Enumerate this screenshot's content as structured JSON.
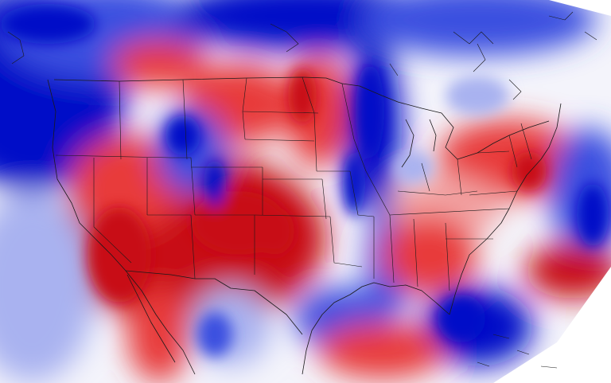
{
  "map": {
    "kind": "weather-anomaly-field",
    "region": "contiguous-united-states",
    "projection": "conic",
    "colors": {
      "strong_negative": "#0010c8",
      "negative": "#3a4fe0",
      "weak_negative": "#a9b2f0",
      "neutral": "#f4f4fb",
      "weak_positive": "#f2a3a3",
      "positive": "#e83a3a",
      "strong_positive": "#c80a14",
      "boundary_lines": "#1a1a1a",
      "outside_domain": "#ffffff"
    }
  }
}
